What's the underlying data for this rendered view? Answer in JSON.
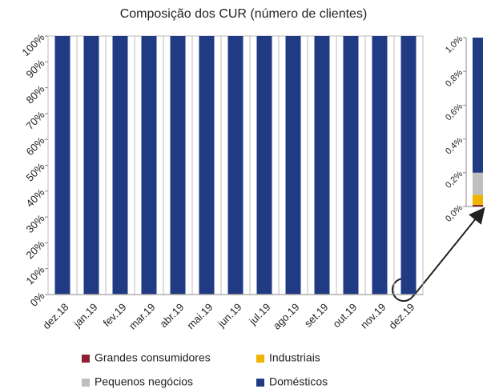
{
  "chart_data": {
    "type": "stacked_bar",
    "title": "Composição dos CUR (número de clientes)",
    "categories": [
      "dez.18",
      "jan.19",
      "fev.19",
      "mar.19",
      "abr.19",
      "mai.19",
      "jun.19",
      "jul.19",
      "ago.19",
      "set.19",
      "out.19",
      "nov.19",
      "dez.19"
    ],
    "series": [
      {
        "name": "Grandes consumidores",
        "color": "#8b2131",
        "values": [
          0.01,
          0.01,
          0.01,
          0.01,
          0.01,
          0.01,
          0.01,
          0.01,
          0.01,
          0.01,
          0.01,
          0.01,
          0.01
        ]
      },
      {
        "name": "Industriais",
        "color": "#f0b400",
        "values": [
          0.06,
          0.06,
          0.06,
          0.06,
          0.06,
          0.06,
          0.06,
          0.06,
          0.06,
          0.06,
          0.06,
          0.06,
          0.06
        ]
      },
      {
        "name": "Pequenos negócios",
        "color": "#bfbfbf",
        "values": [
          0.13,
          0.13,
          0.13,
          0.13,
          0.13,
          0.13,
          0.13,
          0.13,
          0.13,
          0.13,
          0.13,
          0.13,
          0.13
        ]
      },
      {
        "name": "Domésticos",
        "color": "#203a84",
        "values": [
          99.8,
          99.8,
          99.8,
          99.8,
          99.8,
          99.8,
          99.8,
          99.8,
          99.8,
          99.8,
          99.8,
          99.8,
          99.8
        ]
      }
    ],
    "ylim": [
      0,
      100
    ],
    "yticks": [
      {
        "value": 0,
        "label": "0%"
      },
      {
        "value": 10,
        "label": "10%"
      },
      {
        "value": 20,
        "label": "20%"
      },
      {
        "value": 30,
        "label": "30%"
      },
      {
        "value": 40,
        "label": "40%"
      },
      {
        "value": 50,
        "label": "50%"
      },
      {
        "value": 60,
        "label": "60%"
      },
      {
        "value": 70,
        "label": "70%"
      },
      {
        "value": 80,
        "label": "80%"
      },
      {
        "value": 90,
        "label": "90%"
      },
      {
        "value": 100,
        "label": "100%"
      }
    ],
    "inset_ylim": [
      0,
      1
    ],
    "inset_yticks": [
      {
        "value": 0,
        "label": "0,0%"
      },
      {
        "value": 0.2,
        "label": "0,2%"
      },
      {
        "value": 0.4,
        "label": "0,4%"
      },
      {
        "value": 0.6,
        "label": "0,6%"
      },
      {
        "value": 0.8,
        "label": "0,8%"
      },
      {
        "value": 1,
        "label": "1,0%"
      }
    ]
  }
}
